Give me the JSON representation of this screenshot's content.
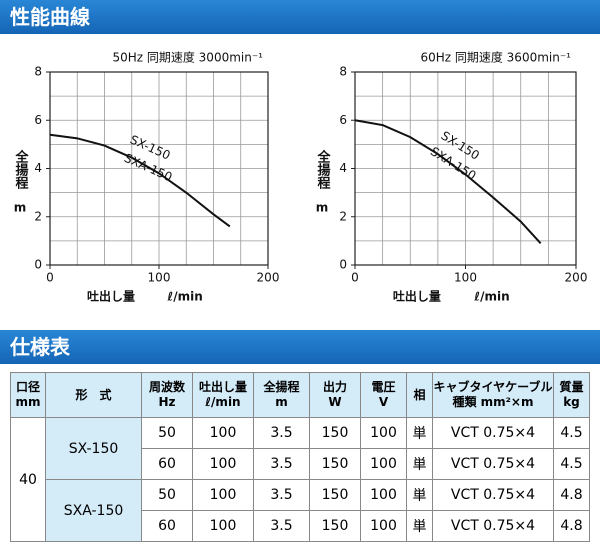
{
  "sections": {
    "curves": "性能曲線",
    "specs": "仕様表"
  },
  "chart_data": [
    {
      "type": "line",
      "title": "50Hz 同期速度 3000min⁻¹",
      "ylabel": "全揚程",
      "ylabel_unit": "m",
      "xlabel": "吐出し量",
      "xlabel_unit": "ℓ/min",
      "x": [
        0,
        25,
        50,
        75,
        100,
        125,
        150,
        165
      ],
      "values": [
        5.4,
        5.25,
        4.95,
        4.45,
        3.8,
        3.0,
        2.1,
        1.6
      ],
      "annotations": [
        "SX-150",
        "SXA-150"
      ],
      "color": "#111111",
      "xlim": [
        0,
        200
      ],
      "xticks": [
        0,
        100,
        200
      ],
      "ylim": [
        0,
        8
      ],
      "yticks": [
        0,
        2,
        4,
        6,
        8
      ],
      "x_grid": [
        25,
        50,
        75,
        100,
        125,
        150,
        175
      ],
      "y_grid": [
        1,
        2,
        3,
        4,
        5,
        6,
        7
      ]
    },
    {
      "type": "line",
      "title": "60Hz 同期速度 3600min⁻¹",
      "ylabel": "全揚程",
      "ylabel_unit": "m",
      "xlabel": "吐出し量",
      "xlabel_unit": "ℓ/min",
      "x": [
        0,
        25,
        50,
        75,
        100,
        125,
        150,
        168
      ],
      "values": [
        6.0,
        5.8,
        5.3,
        4.6,
        3.75,
        2.8,
        1.8,
        0.9
      ],
      "annotations": [
        "SX-150",
        "SXA-150"
      ],
      "color": "#111111",
      "xlim": [
        0,
        200
      ],
      "xticks": [
        0,
        100,
        200
      ],
      "ylim": [
        0,
        8
      ],
      "yticks": [
        0,
        2,
        4,
        6,
        8
      ],
      "x_grid": [
        25,
        50,
        75,
        100,
        125,
        150,
        175
      ],
      "y_grid": [
        1,
        2,
        3,
        4,
        5,
        6,
        7
      ]
    }
  ],
  "table": {
    "header": [
      [
        "口径",
        "mm"
      ],
      [
        "形　式"
      ],
      [
        "周波数",
        "Hz"
      ],
      [
        "吐出し量",
        "ℓ/min"
      ],
      [
        "全揚程",
        "m"
      ],
      [
        "出力",
        "W"
      ],
      [
        "電圧",
        "V"
      ],
      [
        "相"
      ],
      [
        "キャブタイヤケーブル",
        "種類 mm²×m"
      ],
      [
        "質量",
        "kg"
      ]
    ],
    "diameter": "40",
    "models": [
      {
        "name": "SX-150",
        "rows": [
          [
            "50",
            "100",
            "3.5",
            "150",
            "100",
            "単",
            "VCT 0.75×4",
            "4.5"
          ],
          [
            "60",
            "100",
            "3.5",
            "150",
            "100",
            "単",
            "VCT 0.75×4",
            "4.5"
          ]
        ]
      },
      {
        "name": "SXA-150",
        "rows": [
          [
            "50",
            "100",
            "3.5",
            "150",
            "100",
            "単",
            "VCT 0.75×4",
            "4.8"
          ],
          [
            "60",
            "100",
            "3.5",
            "150",
            "100",
            "単",
            "VCT 0.75×4",
            "4.8"
          ]
        ]
      }
    ]
  }
}
